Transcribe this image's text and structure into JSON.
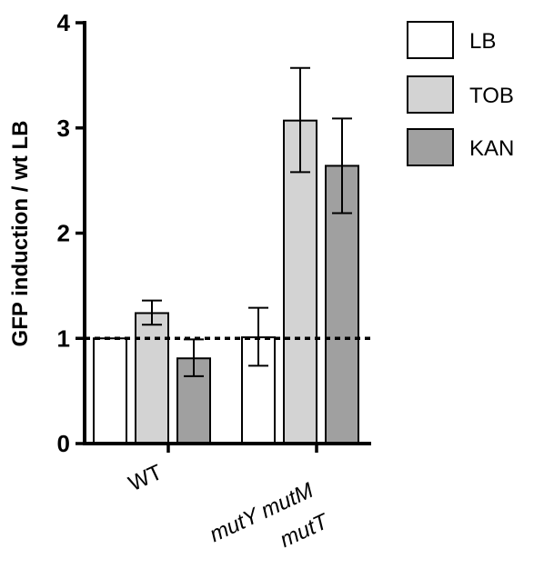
{
  "chart_data": {
    "type": "bar",
    "title": "",
    "xlabel": "",
    "ylabel": "GFP induction / wt LB",
    "ylim": [
      0,
      4
    ],
    "yticks": [
      0,
      1,
      2,
      3,
      4
    ],
    "categories": [
      {
        "label": "WT",
        "lines": [
          "WT"
        ],
        "italic": false
      },
      {
        "label": "mutY mutM mutT",
        "lines": [
          "mutY mutM",
          "mutT"
        ],
        "italic": true
      }
    ],
    "series": [
      {
        "name": "LB",
        "color": "#ffffff",
        "values": [
          1.0,
          1.01
        ],
        "err_low": [
          1.0,
          0.74
        ],
        "err_high": [
          1.0,
          1.29
        ]
      },
      {
        "name": "TOB",
        "color": "#d3d3d3",
        "values": [
          1.24,
          3.07
        ],
        "err_low": [
          1.13,
          2.58
        ],
        "err_high": [
          1.36,
          3.57
        ]
      },
      {
        "name": "KAN",
        "color": "#a0a0a0",
        "values": [
          0.81,
          2.64
        ],
        "err_low": [
          0.64,
          2.19
        ],
        "err_high": [
          0.99,
          3.09
        ]
      }
    ],
    "reference_line": {
      "y": 1.0,
      "style": "dotted"
    },
    "legend": {
      "position": "top-right"
    },
    "grid": false
  }
}
